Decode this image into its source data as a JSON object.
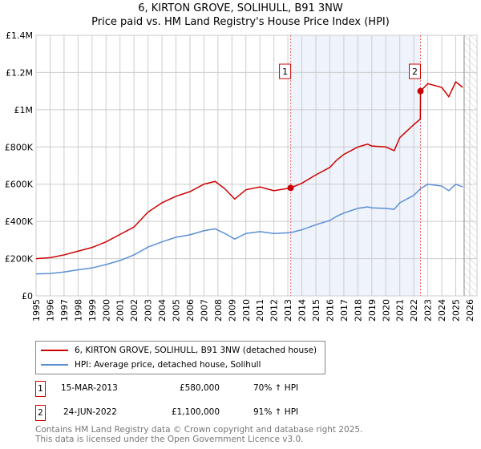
{
  "chart_data": {
    "type": "line",
    "title": "6, KIRTON GROVE, SOLIHULL, B91 3NW",
    "subtitle": "Price paid vs. HM Land Registry's House Price Index (HPI)",
    "xlim": [
      1995,
      2026.5
    ],
    "ylim": [
      0,
      1400000
    ],
    "x_ticks": [
      "1995",
      "1996",
      "1997",
      "1998",
      "1999",
      "2000",
      "2001",
      "2002",
      "2003",
      "2004",
      "2005",
      "2006",
      "2007",
      "2008",
      "2009",
      "2010",
      "2011",
      "2012",
      "2013",
      "2014",
      "2015",
      "2016",
      "2017",
      "2018",
      "2019",
      "2020",
      "2021",
      "2022",
      "2023",
      "2024",
      "2025",
      "2026"
    ],
    "y_ticks": [
      {
        "v": 0,
        "label": "£0"
      },
      {
        "v": 200000,
        "label": "£200K"
      },
      {
        "v": 400000,
        "label": "£400K"
      },
      {
        "v": 600000,
        "label": "£600K"
      },
      {
        "v": 800000,
        "label": "£800K"
      },
      {
        "v": 1000000,
        "label": "£1M"
      },
      {
        "v": 1200000,
        "label": "£1.2M"
      },
      {
        "v": 1400000,
        "label": "£1.4M"
      }
    ],
    "grid": true,
    "shaded_range": [
      2013.2,
      2022.48
    ],
    "forecast_hatch_from": 2025.6,
    "series": [
      {
        "name": "6, KIRTON GROVE, SOLIHULL, B91 3NW (detached house)",
        "color": "#cc0000",
        "x": [
          1995,
          1996,
          1997,
          1998,
          1999,
          2000,
          2001,
          2002,
          2003,
          2004,
          2005,
          2006,
          2007,
          2007.8,
          2008.5,
          2009.2,
          2010,
          2011,
          2012,
          2013.2,
          2014,
          2015,
          2016,
          2016.5,
          2017,
          2018,
          2018.7,
          2019,
          2020,
          2020.6,
          2021,
          2022,
          2022.47,
          2022.48,
          2023,
          2023.5,
          2024,
          2024.5,
          2025,
          2025.5
        ],
        "y": [
          200000,
          205000,
          220000,
          240000,
          260000,
          290000,
          330000,
          370000,
          450000,
          500000,
          535000,
          560000,
          600000,
          615000,
          575000,
          520000,
          570000,
          585000,
          565000,
          580000,
          605000,
          650000,
          690000,
          730000,
          760000,
          800000,
          815000,
          805000,
          800000,
          780000,
          850000,
          920000,
          950000,
          1100000,
          1140000,
          1130000,
          1120000,
          1070000,
          1150000,
          1120000
        ]
      },
      {
        "name": "HPI: Average price, detached house, Solihull",
        "color": "#5b8fd4",
        "x": [
          1995,
          1996,
          1997,
          1998,
          1999,
          2000,
          2001,
          2002,
          2003,
          2004,
          2005,
          2006,
          2007,
          2007.8,
          2008.5,
          2009.2,
          2010,
          2011,
          2012,
          2013.2,
          2014,
          2015,
          2016,
          2016.5,
          2017,
          2018,
          2018.7,
          2019,
          2020,
          2020.6,
          2021,
          2022,
          2022.48,
          2023,
          2023.5,
          2024,
          2024.5,
          2025,
          2025.5
        ],
        "y": [
          118000,
          120000,
          128000,
          140000,
          150000,
          168000,
          190000,
          220000,
          262000,
          290000,
          315000,
          328000,
          350000,
          360000,
          335000,
          305000,
          335000,
          345000,
          335000,
          340000,
          355000,
          382000,
          405000,
          428000,
          445000,
          470000,
          478000,
          473000,
          470000,
          465000,
          500000,
          540000,
          575000,
          600000,
          595000,
          590000,
          565000,
          600000,
          585000
        ]
      }
    ],
    "annotations": [
      {
        "label": "1",
        "x": 2013.2,
        "y": 580000
      },
      {
        "label": "2",
        "x": 2022.48,
        "y": 1100000
      }
    ]
  },
  "legend": {
    "items": [
      "6, KIRTON GROVE, SOLIHULL, B91 3NW (detached house)",
      "HPI: Average price, detached house, Solihull"
    ]
  },
  "transactions": [
    {
      "num": "1",
      "date": "15-MAR-2013",
      "price": "£580,000",
      "hpi": "70% ↑ HPI"
    },
    {
      "num": "2",
      "date": "24-JUN-2022",
      "price": "£1,100,000",
      "hpi": "91% ↑ HPI"
    }
  ],
  "footer": {
    "line1": "Contains HM Land Registry data © Crown copyright and database right 2025.",
    "line2": "This data is licensed under the Open Government Licence v3.0."
  }
}
